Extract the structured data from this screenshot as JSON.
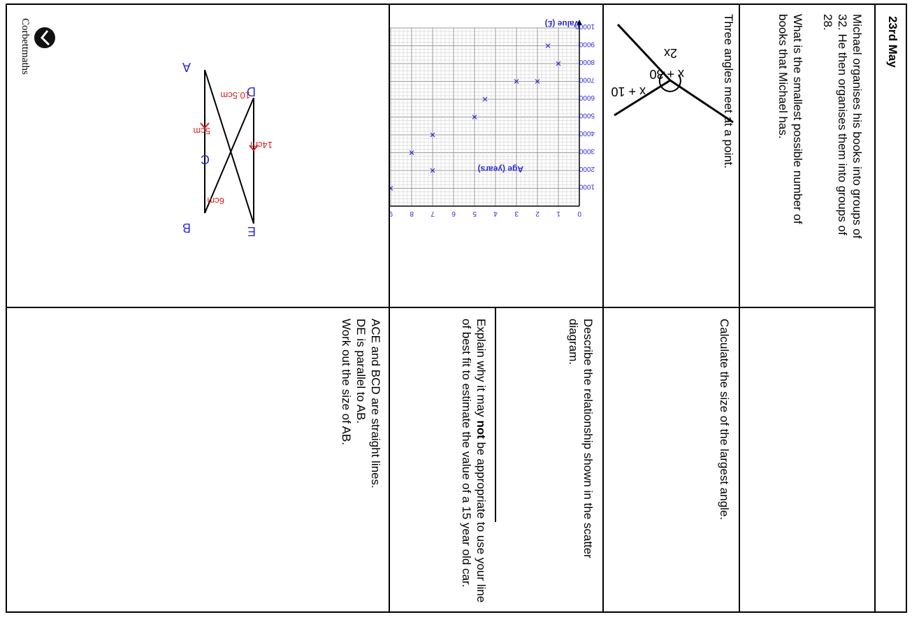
{
  "header": {
    "date": "23rd May",
    "brand": "Corbettmaths"
  },
  "q1": {
    "text1": "Michael organises his books into groups of 32. He then organises them into groups of 28.",
    "text2": "What is the smallest possible number of books that Michael has."
  },
  "q2": {
    "intro": "Three angles meet at a point.",
    "angles": [
      "x + 30",
      "x + 10",
      "2x"
    ],
    "question": "Calculate the size of the largest angle."
  },
  "q3": {
    "a": "Describe the relationship shown in the scatter diagram.",
    "b_pre": "Explain why it may ",
    "b_bold": "not",
    "b_post": " be appropriate to use your line of best fit to estimate the value of a 15 year old car."
  },
  "q4": {
    "text1": "ACE and BCD are straight lines.",
    "text2": "DE is parallel to AB.",
    "text3": "Work out the size of AB.",
    "labels": {
      "A": "A",
      "B": "B",
      "C": "C",
      "D": "D",
      "E": "E"
    },
    "lengths": {
      "DC": "10.5cm",
      "DE": "14cm",
      "AC": "5cm",
      "CB": "6cm"
    }
  },
  "chart_data": {
    "type": "scatter",
    "xlabel": "Age (years)",
    "ylabel": "Value (£)",
    "xlim": [
      0,
      10
    ],
    "ylim": [
      0,
      10000
    ],
    "x_ticks": [
      0,
      1,
      2,
      3,
      4,
      5,
      6,
      7,
      8,
      9
    ],
    "y_ticks": [
      1000,
      2000,
      3000,
      4000,
      5000,
      6000,
      7000,
      8000,
      9000,
      10000
    ],
    "grid": true,
    "color": "#2a2ad8",
    "points": [
      {
        "x": 1,
        "y": 8000
      },
      {
        "x": 1.5,
        "y": 9000
      },
      {
        "x": 2,
        "y": 7000
      },
      {
        "x": 3,
        "y": 7000
      },
      {
        "x": 4.5,
        "y": 6000
      },
      {
        "x": 5,
        "y": 5000
      },
      {
        "x": 7,
        "y": 4000
      },
      {
        "x": 7,
        "y": 2000
      },
      {
        "x": 8,
        "y": 3000
      },
      {
        "x": 9,
        "y": 1000
      }
    ]
  }
}
